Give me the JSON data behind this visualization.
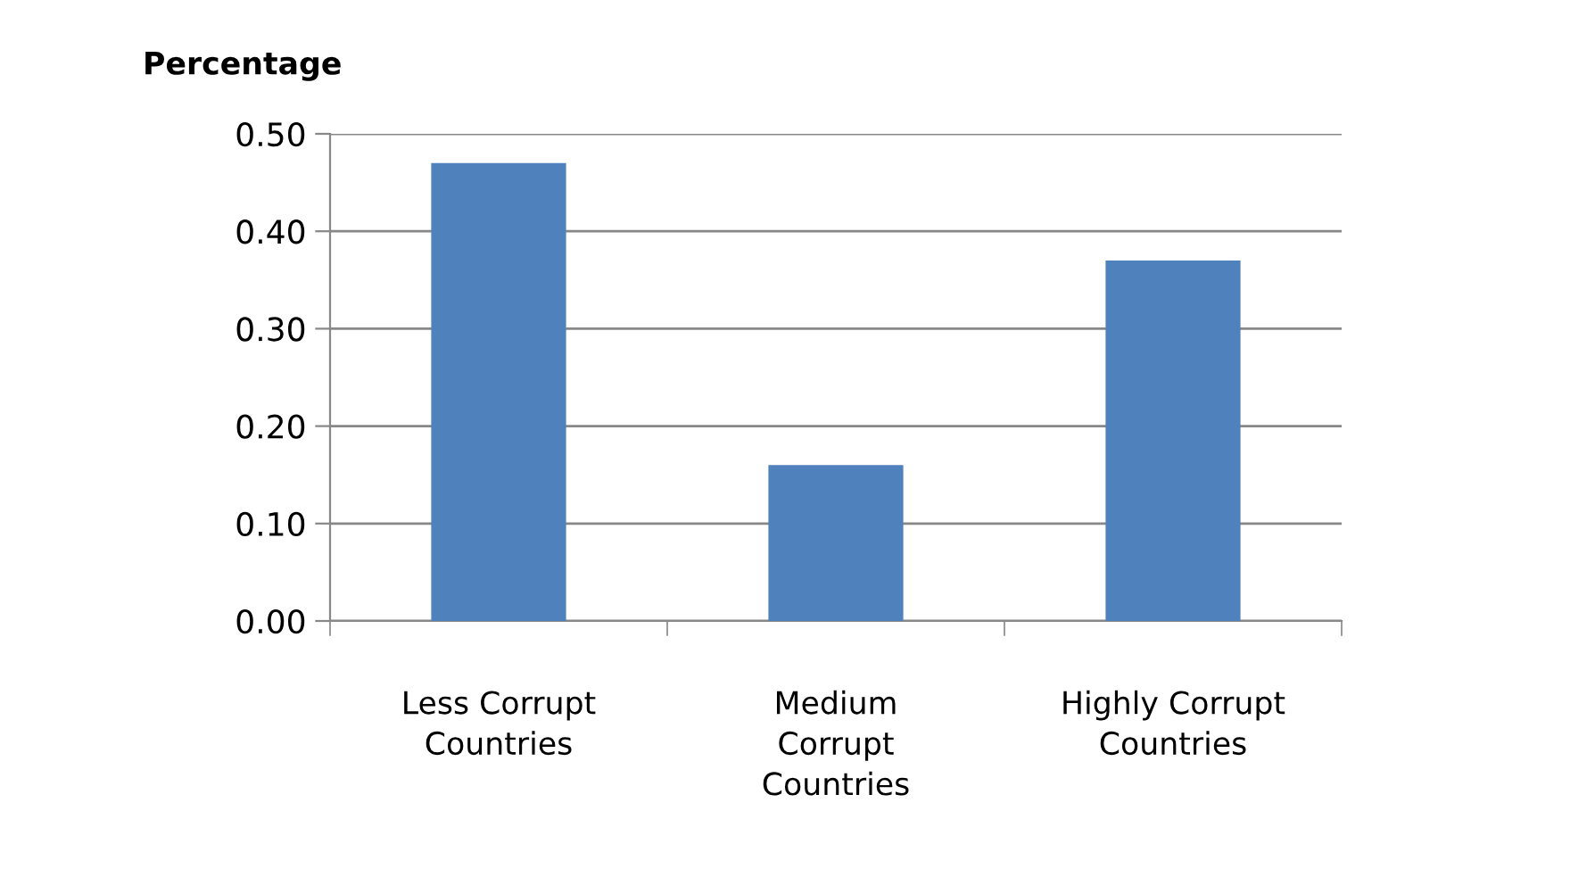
{
  "chart_data": {
    "type": "bar",
    "ylabel": "Percentage",
    "categories": [
      "Less Corrupt\nCountries",
      "Medium\nCorrupt\nCountries",
      "Highly Corrupt\nCountries"
    ],
    "values": [
      0.47,
      0.16,
      0.37
    ],
    "color": "#4f81bd",
    "ylim": [
      0,
      0.5
    ],
    "yticks": [
      {
        "value": 0,
        "label": "0.00"
      },
      {
        "value": 0.1,
        "label": "0.10"
      },
      {
        "value": 0.2,
        "label": "0.20"
      },
      {
        "value": 0.3,
        "label": "0.30"
      },
      {
        "value": 0.4,
        "label": "0.40"
      },
      {
        "value": 0.5,
        "label": "0.50"
      }
    ],
    "grid": "y",
    "legend": false
  }
}
